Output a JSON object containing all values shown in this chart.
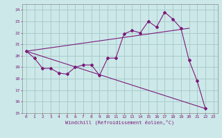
{
  "xlabel": "Windchill (Refroidissement éolien,°C)",
  "bg_color": "#cce8e8",
  "grid_color": "#aacccc",
  "line_color": "#7b1a7b",
  "xlim": [
    -0.5,
    23.5
  ],
  "ylim": [
    15,
    24.5
  ],
  "yticks": [
    15,
    16,
    17,
    18,
    19,
    20,
    21,
    22,
    23,
    24
  ],
  "xticks": [
    0,
    1,
    2,
    3,
    4,
    5,
    6,
    7,
    8,
    9,
    10,
    11,
    12,
    13,
    14,
    15,
    16,
    17,
    18,
    19,
    20,
    21,
    22,
    23
  ],
  "main_line_x": [
    0,
    1,
    2,
    3,
    4,
    5,
    6,
    7,
    8,
    9,
    10,
    11,
    12,
    13,
    14,
    15,
    16,
    17,
    18,
    19,
    20,
    21,
    22
  ],
  "main_line_y": [
    20.4,
    19.8,
    18.9,
    18.9,
    18.5,
    18.4,
    19.0,
    19.2,
    19.2,
    18.3,
    19.8,
    19.8,
    21.9,
    22.2,
    22.0,
    23.0,
    22.5,
    23.8,
    23.2,
    22.4,
    19.6,
    17.8,
    15.4
  ],
  "upper_line_x": [
    0,
    20
  ],
  "upper_line_y": [
    20.4,
    22.4
  ],
  "lower_line_x": [
    0,
    22
  ],
  "lower_line_y": [
    20.4,
    15.4
  ]
}
